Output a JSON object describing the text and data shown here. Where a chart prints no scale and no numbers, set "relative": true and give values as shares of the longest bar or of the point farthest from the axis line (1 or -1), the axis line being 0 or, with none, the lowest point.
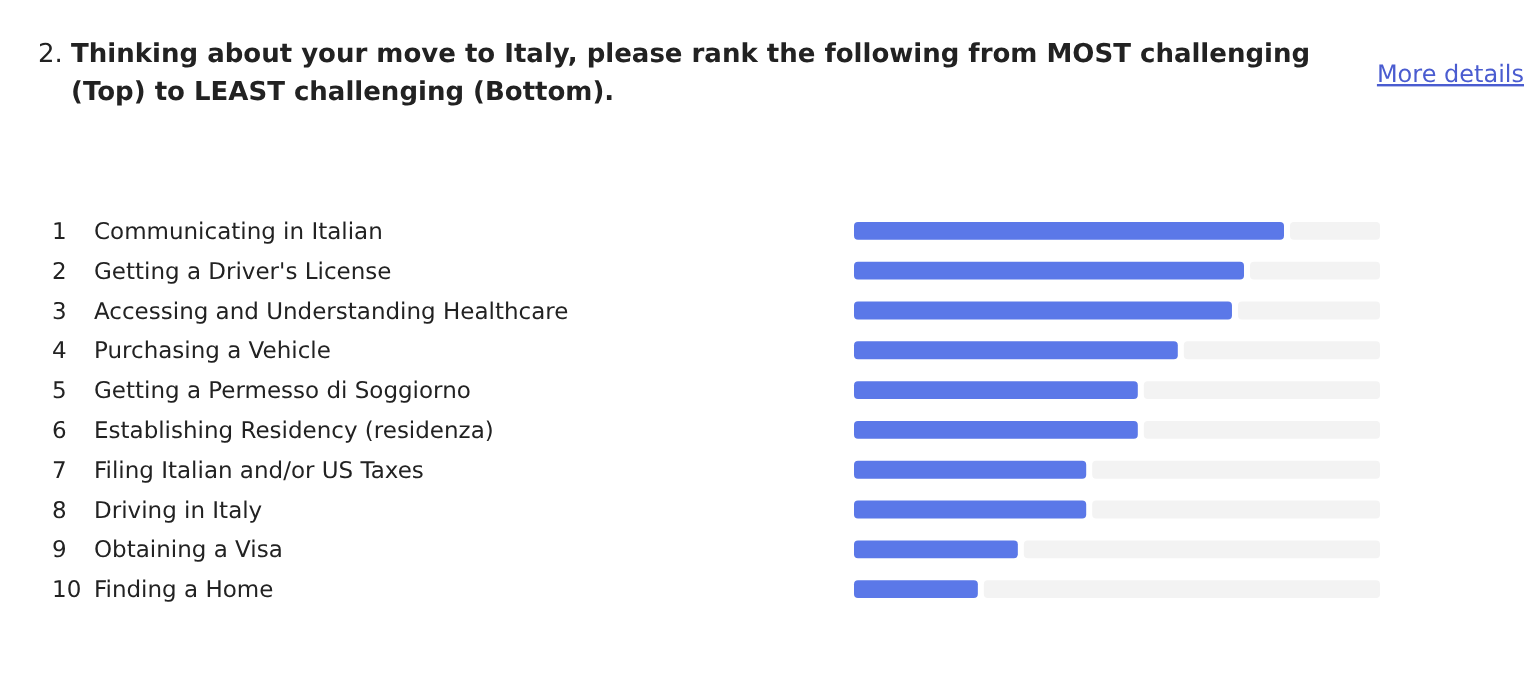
{
  "chart_data": {
    "type": "bar",
    "orientation": "horizontal",
    "relative": true,
    "title": "2. Thinking about your move to Italy, please rank the following from MOST challenging (Top) to LEAST challenging (Bottom).",
    "annotations": [
      "More details"
    ],
    "categories": [
      "1 Communicating in Italian",
      "2 Getting a Driver's License",
      "3 Accessing and Understanding Healthcare",
      "4 Purchasing a Vehicle",
      "5 Getting a Permesso di Soggiorno",
      "6 Establishing Residency (residenza)",
      "7 Filing Italian and/or US Taxes",
      "8 Driving in Italy",
      "9 Obtaining a Visa",
      "10 Finding a Home"
    ],
    "values": [
      1,
      0.907,
      0.879,
      0.753,
      0.66,
      0.66,
      0.54,
      0.54,
      0.381,
      0.288
    ],
    "color": "#5b78e8"
  }
}
